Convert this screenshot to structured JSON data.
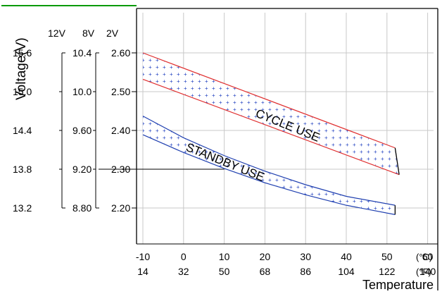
{
  "chart_data": {
    "type": "area",
    "ylabel": "Voltage(V)",
    "xlabel": "Temperature",
    "x_unit_c": "(°C)",
    "x_unit_f": "(°F)",
    "x_celsius_ticks": [
      "-10",
      "0",
      "10",
      "20",
      "30",
      "40",
      "50",
      "60"
    ],
    "x_fahrenheit_ticks": [
      "14",
      "32",
      "50",
      "68",
      "86",
      "104",
      "122",
      "140"
    ],
    "xlim": [
      -10,
      60
    ],
    "ylim": [
      2.15,
      2.62
    ],
    "y_columns": [
      {
        "header": "12V",
        "ticks": [
          "15.6",
          "15.0",
          "14.4",
          "13.8",
          "13.2"
        ]
      },
      {
        "header": "8V",
        "ticks": [
          "10.4",
          "10.0",
          "9.60",
          "9.20",
          "8.80"
        ]
      },
      {
        "header": "2V",
        "ticks": [
          "2.60",
          "2.50",
          "2.40",
          "2.30",
          "2.20"
        ]
      }
    ],
    "y_tick_values": [
      2.6,
      2.5,
      2.4,
      2.3,
      2.2
    ],
    "grid": true,
    "bands": [
      {
        "name": "CYCLE USE",
        "color": "#e03030",
        "dot_color": "#2040c0",
        "upper": {
          "x": [
            -10,
            52
          ],
          "y": [
            2.6,
            2.355
          ]
        },
        "lower": {
          "x": [
            -10,
            53
          ],
          "y": [
            2.532,
            2.286
          ]
        },
        "end_x": 53
      },
      {
        "name": "STANDBY USE",
        "color": "#2040b0",
        "dot_color": "#2040c0",
        "upper": {
          "x": [
            -10,
            0,
            10,
            20,
            30,
            40,
            52
          ],
          "y": [
            2.437,
            2.381,
            2.335,
            2.295,
            2.26,
            2.23,
            2.207
          ]
        },
        "lower": {
          "x": [
            -10,
            0,
            10,
            20,
            30,
            40,
            52
          ],
          "y": [
            2.389,
            2.343,
            2.302,
            2.265,
            2.234,
            2.207,
            2.183
          ]
        },
        "end_x": 52
      }
    ],
    "reference_line": {
      "value": 2.3,
      "x_end": 10
    }
  }
}
